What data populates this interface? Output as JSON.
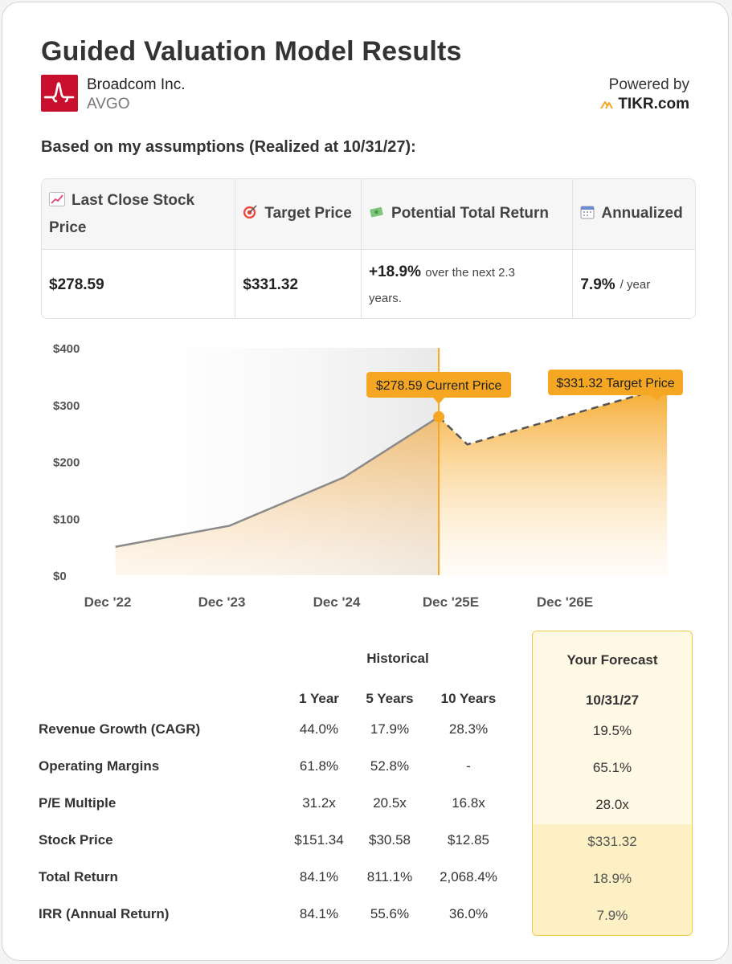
{
  "header": {
    "title": "Guided Valuation Model Results",
    "company": "Broadcom Inc.",
    "ticker": "AVGO",
    "powered_by": "Powered by",
    "brand": "TIKR.com",
    "subtitle": "Based on my assumptions (Realized at 10/31/27):"
  },
  "summary": {
    "headers": [
      {
        "icon": "chart-increasing-icon",
        "label": "Last Close Stock Price"
      },
      {
        "icon": "target-icon",
        "label": "Target Price"
      },
      {
        "icon": "money-with-wings-icon",
        "label": "Potential Total Return"
      },
      {
        "icon": "calendar-icon",
        "label": "Annualized"
      }
    ],
    "last_close": "$278.59",
    "target": "$331.32",
    "return_value": "+18.9%",
    "return_suffix": "over the next 2.3",
    "return_suffix2": "years.",
    "annualized_value": "7.9%",
    "annualized_suffix": "/ year"
  },
  "chart_data": {
    "type": "area",
    "y_ticks": [
      "$400",
      "$300",
      "$200",
      "$100",
      "$0"
    ],
    "ylim": [
      0,
      400
    ],
    "x_ticks": [
      "Dec '22",
      "Dec '23",
      "Dec '24",
      "Dec '25E",
      "Dec '26E"
    ],
    "historical": {
      "x": [
        "2022-12",
        "2023-12",
        "2024-12",
        "2025-10"
      ],
      "y": [
        50,
        87,
        172,
        278.59
      ]
    },
    "forecast": {
      "x": [
        "2025-10",
        "2026-01",
        "2027-10"
      ],
      "y": [
        278.59,
        230,
        331.32
      ]
    },
    "current_label": "$278.59 Current Price",
    "target_label": "$331.32 Target Price",
    "colors": {
      "accent": "#f5a623",
      "historical_line": "#8a8a8a",
      "forecast_line": "#555555"
    }
  },
  "metrics": {
    "historical_label": "Historical",
    "forecast_label": "Your Forecast",
    "columns": [
      "1 Year",
      "5 Years",
      "10 Years"
    ],
    "forecast_date": "10/31/27",
    "rows": [
      {
        "label": "Revenue Growth (CAGR)",
        "values": [
          "44.0%",
          "17.9%",
          "28.3%"
        ],
        "forecast": "19.5%"
      },
      {
        "label": "Operating Margins",
        "values": [
          "61.8%",
          "52.8%",
          "-"
        ],
        "forecast": "65.1%"
      },
      {
        "label": "P/E Multiple",
        "values": [
          "31.2x",
          "20.5x",
          "16.8x"
        ],
        "forecast": "28.0x"
      },
      {
        "label": "Stock Price",
        "values": [
          "$151.34",
          "$30.58",
          "$12.85"
        ],
        "forecast": "$331.32"
      },
      {
        "label": "Total Return",
        "values": [
          "84.1%",
          "811.1%",
          "2,068.4%"
        ],
        "forecast": "18.9%"
      },
      {
        "label": "IRR (Annual Return)",
        "values": [
          "84.1%",
          "55.6%",
          "36.0%"
        ],
        "forecast": "7.9%"
      }
    ]
  }
}
